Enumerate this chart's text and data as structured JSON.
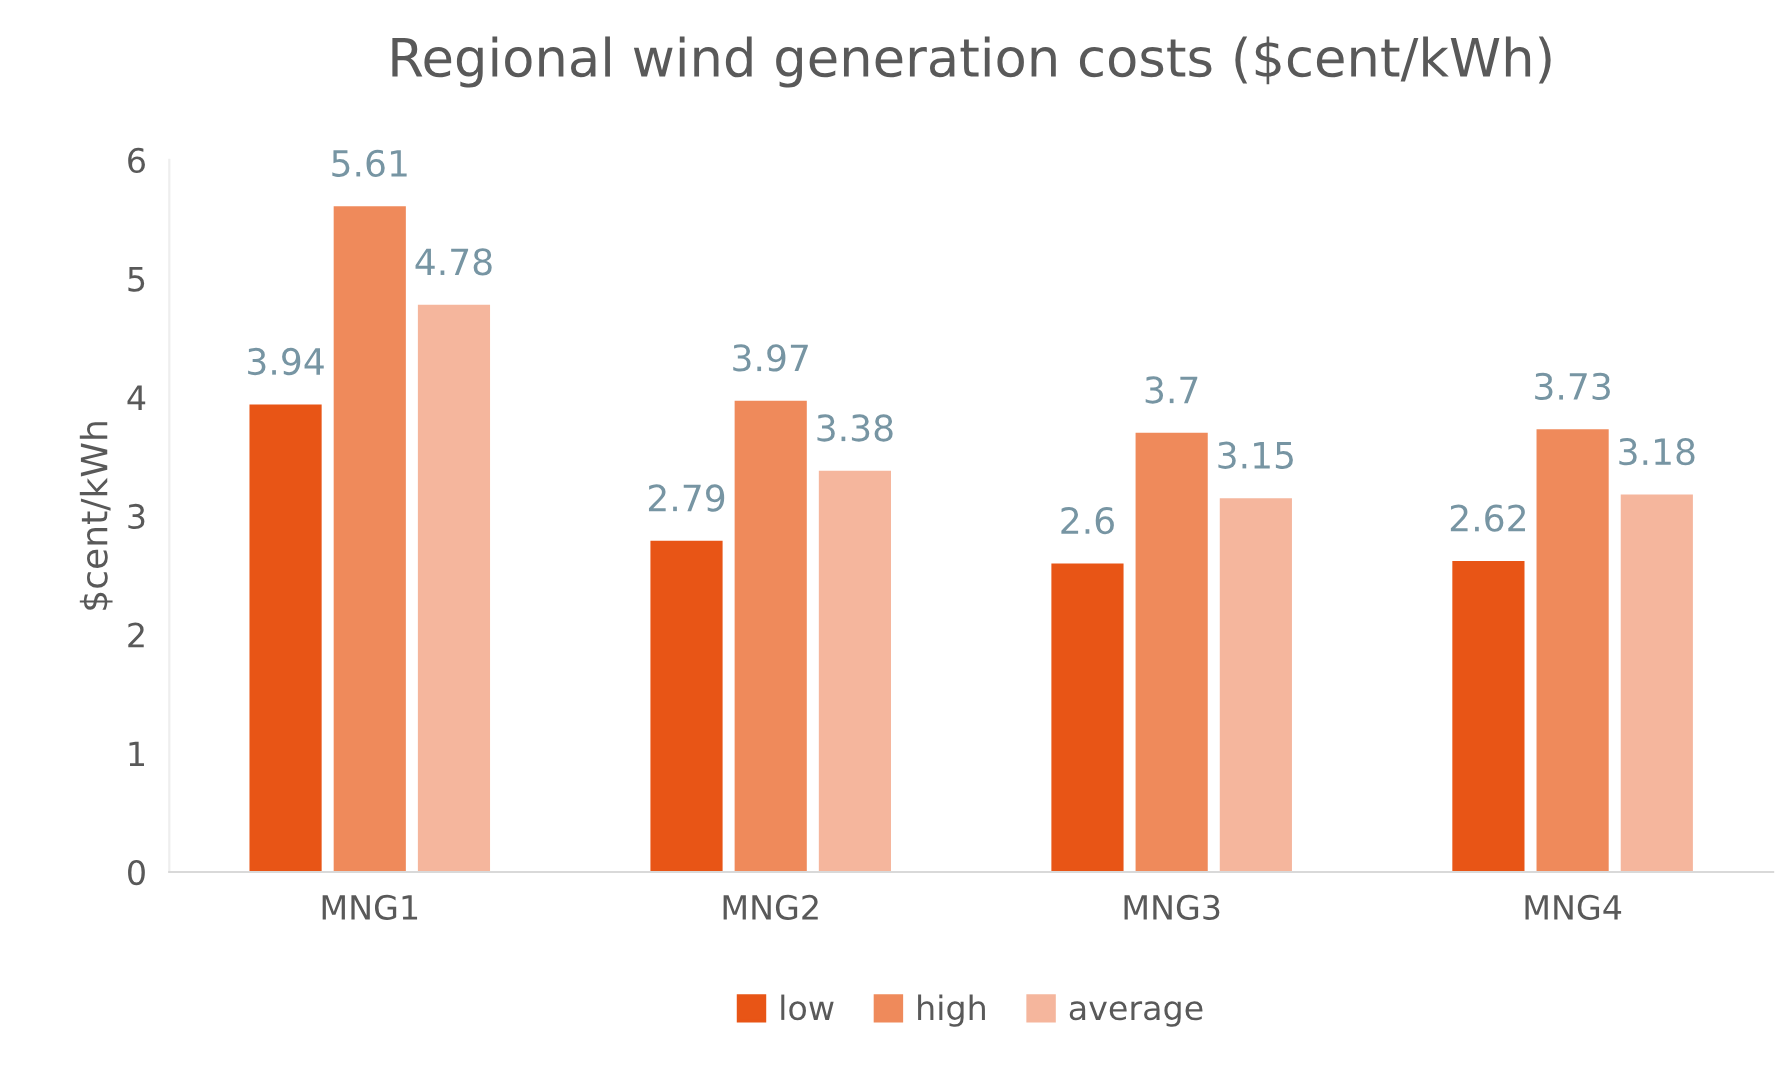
{
  "chart_data": {
    "type": "bar",
    "title": "Regional wind generation costs ($cent/kWh)",
    "ylabel": "$cent/kWh",
    "categories": [
      "MNG1",
      "MNG2",
      "MNG3",
      "MNG4"
    ],
    "series": [
      {
        "name": "low",
        "color": "#e85516",
        "values": [
          3.94,
          2.79,
          2.6,
          2.62
        ]
      },
      {
        "name": "high",
        "color": "#ef8a5b",
        "values": [
          5.61,
          3.97,
          3.7,
          3.73
        ]
      },
      {
        "name": "average",
        "color": "#f5b69d",
        "values": [
          4.78,
          3.38,
          3.15,
          3.18
        ]
      }
    ],
    "ylim": [
      0,
      6
    ],
    "yticks": [
      0,
      1,
      2,
      3,
      4,
      5,
      6
    ],
    "grid": false,
    "legend": "bottom",
    "data_labels": true
  }
}
